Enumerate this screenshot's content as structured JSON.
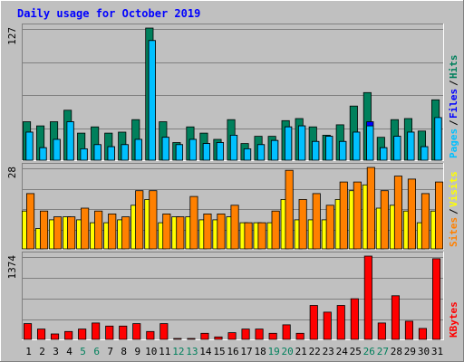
{
  "title": "Daily usage for October 2019",
  "colors": {
    "background": "#c0c0c0",
    "panel": "#c0c0c0",
    "grid": "#808080",
    "title": "#0000ff",
    "hits": "#00805c",
    "files": "#0000ff",
    "pages": "#00c0ff",
    "visits": "#ffff00",
    "sites": "#ff8000",
    "kbytes": "#ff0000",
    "weekday_label": "#000000",
    "weekend_label": "#00805c"
  },
  "chart_data": [
    {
      "type": "bar",
      "name": "hits-files-pages",
      "ylabel_max": "127",
      "ylim": [
        0,
        127
      ],
      "legend": [
        {
          "text": "Pages",
          "color": "#00c0ff"
        },
        {
          "text": "Files",
          "color": "#0000ff"
        },
        {
          "text": "Hits",
          "color": "#00805c"
        }
      ],
      "categories": [
        "1",
        "2",
        "3",
        "4",
        "5",
        "6",
        "7",
        "8",
        "9",
        "10",
        "11",
        "12",
        "13",
        "14",
        "15",
        "16",
        "17",
        "18",
        "19",
        "20",
        "21",
        "22",
        "23",
        "24",
        "25",
        "26",
        "27",
        "28",
        "29",
        "30",
        "31"
      ],
      "series": [
        {
          "name": "Hits",
          "values": [
            37,
            33,
            37,
            48,
            26,
            32,
            26,
            27,
            39,
            127,
            37,
            17,
            32,
            26,
            20,
            39,
            16,
            23,
            23,
            38,
            40,
            32,
            24,
            34,
            52,
            65,
            22,
            39,
            40,
            28,
            58
          ]
        },
        {
          "name": "Files",
          "values": [
            27,
            12,
            20,
            37,
            11,
            15,
            13,
            15,
            20,
            115,
            22,
            15,
            20,
            16,
            17,
            24,
            11,
            15,
            19,
            32,
            33,
            18,
            23,
            18,
            27,
            37,
            12,
            23,
            27,
            13,
            41
          ]
        },
        {
          "name": "Pages",
          "values": [
            27,
            12,
            20,
            37,
            11,
            15,
            13,
            15,
            20,
            115,
            22,
            15,
            20,
            16,
            17,
            24,
            11,
            15,
            19,
            32,
            33,
            18,
            23,
            18,
            27,
            33,
            12,
            23,
            27,
            13,
            41
          ]
        }
      ]
    },
    {
      "type": "bar",
      "name": "sites-visits",
      "ylabel_max": "28",
      "ylim": [
        0,
        28
      ],
      "legend": [
        {
          "text": "Sites",
          "color": "#ff8000"
        },
        {
          "text": "Visits",
          "color": "#ffff00"
        }
      ],
      "categories": [
        "1",
        "2",
        "3",
        "4",
        "5",
        "6",
        "7",
        "8",
        "9",
        "10",
        "11",
        "12",
        "13",
        "14",
        "15",
        "16",
        "17",
        "18",
        "19",
        "20",
        "21",
        "22",
        "23",
        "24",
        "25",
        "26",
        "27",
        "28",
        "29",
        "30",
        "31"
      ],
      "series": [
        {
          "name": "Visits",
          "values": [
            13,
            7,
            10,
            11,
            10,
            9,
            9,
            10,
            15,
            17,
            9,
            11,
            11,
            10,
            10,
            11,
            9,
            9,
            9,
            17,
            10,
            10,
            10,
            17,
            20,
            22,
            14,
            15,
            13,
            9,
            13
          ]
        },
        {
          "name": "Sites",
          "values": [
            19,
            13,
            11,
            11,
            14,
            13,
            12,
            11,
            20,
            20,
            12,
            11,
            18,
            12,
            12,
            15,
            9,
            9,
            13,
            27,
            17,
            19,
            15,
            23,
            23,
            28,
            20,
            25,
            24,
            19,
            23
          ]
        }
      ]
    },
    {
      "type": "bar",
      "name": "kbytes",
      "ylabel_max": "1374",
      "ylim": [
        0,
        1374
      ],
      "legend": [
        {
          "text": "KBytes",
          "color": "#ff0000"
        }
      ],
      "categories": [
        "1",
        "2",
        "3",
        "4",
        "5",
        "6",
        "7",
        "8",
        "9",
        "10",
        "11",
        "12",
        "13",
        "14",
        "15",
        "16",
        "17",
        "18",
        "19",
        "20",
        "21",
        "22",
        "23",
        "24",
        "25",
        "26",
        "27",
        "28",
        "29",
        "30",
        "31"
      ],
      "series": [
        {
          "name": "KBytes",
          "values": [
            260,
            170,
            90,
            130,
            170,
            270,
            220,
            220,
            260,
            130,
            260,
            5,
            5,
            100,
            40,
            110,
            170,
            170,
            100,
            240,
            100,
            560,
            450,
            560,
            670,
            1374,
            270,
            720,
            300,
            180,
            1330
          ]
        }
      ]
    }
  ],
  "xaxis": {
    "labels": [
      "1",
      "2",
      "3",
      "4",
      "5",
      "6",
      "7",
      "8",
      "9",
      "10",
      "11",
      "12",
      "13",
      "14",
      "15",
      "16",
      "17",
      "18",
      "19",
      "20",
      "21",
      "22",
      "23",
      "24",
      "25",
      "26",
      "27",
      "28",
      "29",
      "30",
      "31"
    ],
    "weekend_days": [
      "5",
      "6",
      "12",
      "13",
      "19",
      "20",
      "26",
      "27"
    ]
  }
}
